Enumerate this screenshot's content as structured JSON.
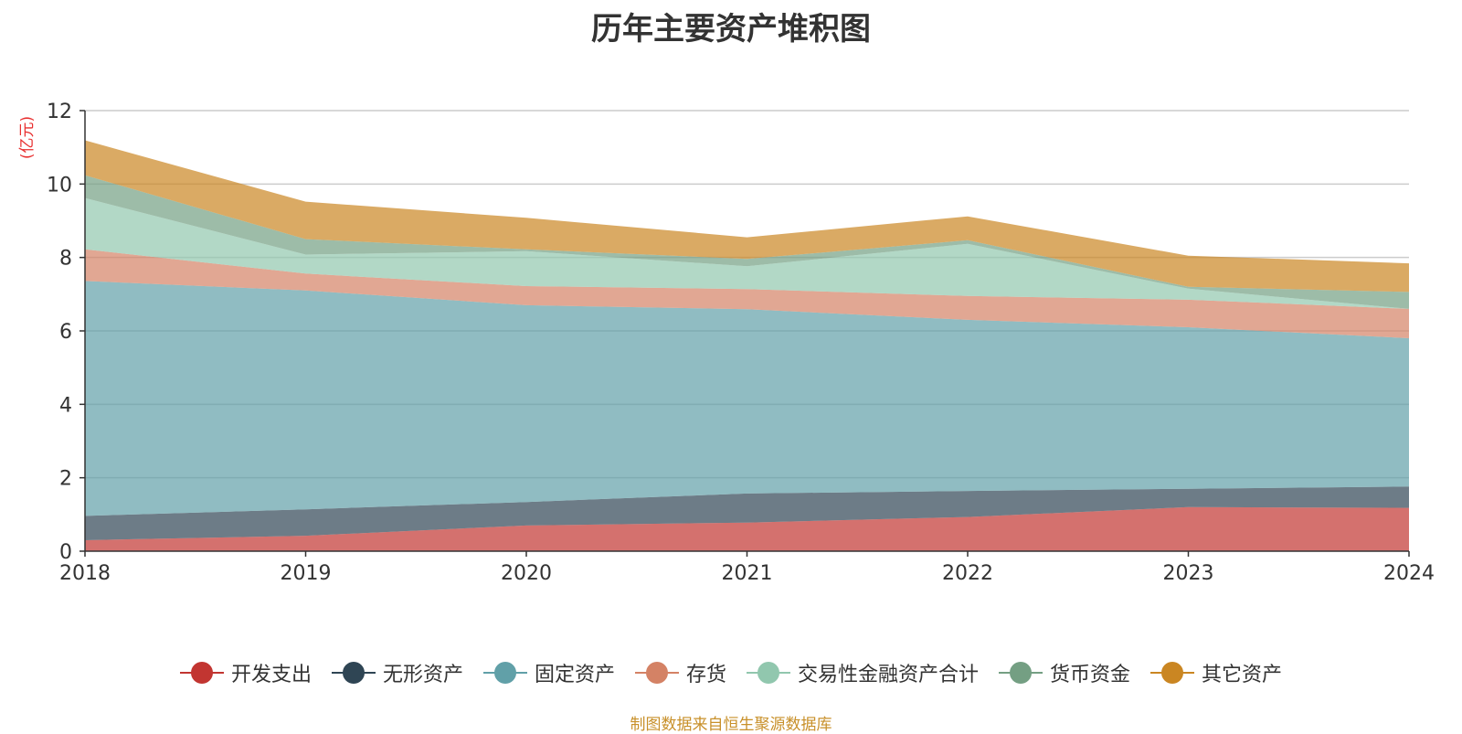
{
  "chart_data": {
    "type": "area",
    "stacked": true,
    "title": "历年主要资产堆积图",
    "ylabel": "(亿元)",
    "xlabel": "",
    "x": [
      "2018",
      "2019",
      "2020",
      "2021",
      "2022",
      "2023",
      "2024"
    ],
    "ylim": [
      0,
      12
    ],
    "yticks": [
      0,
      2,
      4,
      6,
      8,
      10,
      12
    ],
    "grid": true,
    "legend_position": "bottom",
    "series": [
      {
        "name": "开发支出",
        "color": "#c23531",
        "values": [
          0.3,
          0.42,
          0.7,
          0.78,
          0.93,
          1.2,
          1.18
        ]
      },
      {
        "name": "无形资产",
        "color": "#2f4554",
        "values": [
          0.66,
          0.72,
          0.64,
          0.79,
          0.71,
          0.5,
          0.58
        ]
      },
      {
        "name": "固定资产",
        "color": "#61a0a8",
        "values": [
          6.4,
          5.96,
          5.36,
          5.02,
          4.66,
          4.4,
          4.04
        ]
      },
      {
        "name": "存货",
        "color": "#d48265",
        "values": [
          0.86,
          0.46,
          0.52,
          0.55,
          0.65,
          0.75,
          0.8
        ]
      },
      {
        "name": "交易性金融资产合计",
        "color": "#91c7ae",
        "values": [
          1.4,
          0.52,
          0.95,
          0.62,
          1.42,
          0.3,
          0.0
        ]
      },
      {
        "name": "货币资金",
        "color": "#749f83",
        "values": [
          0.62,
          0.42,
          0.05,
          0.2,
          0.1,
          0.05,
          0.46
        ]
      },
      {
        "name": "其它资产",
        "color": "#ca8622",
        "values": [
          0.95,
          1.02,
          0.86,
          0.59,
          0.65,
          0.85,
          0.78
        ]
      }
    ]
  },
  "source_note": "制图数据来自恒生聚源数据库"
}
